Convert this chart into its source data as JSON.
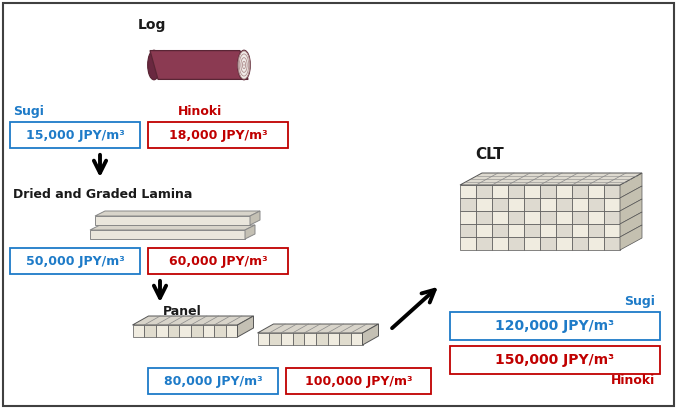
{
  "bg_color": "#ffffff",
  "border_color": "#404040",
  "blue_color": "#1e7bc8",
  "red_color": "#c00000",
  "black_color": "#1a1a1a",
  "label_log": "Log",
  "label_lamina": "Dried and Graded Lamina",
  "label_panel": "Panel",
  "label_clt": "CLT",
  "label_sugi": "Sugi",
  "label_hinoki": "Hinoki",
  "log_sugi_price": "15,000 JPY/m³",
  "log_hinoki_price": "18,000 JPY/m³",
  "lamina_sugi_price": "50,000 JPY/m³",
  "lamina_hinoki_price": "60,000 JPY/m³",
  "panel_sugi_price": "80,000 JPY/m³",
  "panel_hinoki_price": "100,000 JPY/m³",
  "clt_sugi_price": "120,000 JPY/m³",
  "clt_hinoki_price": "150,000 JPY/m³"
}
